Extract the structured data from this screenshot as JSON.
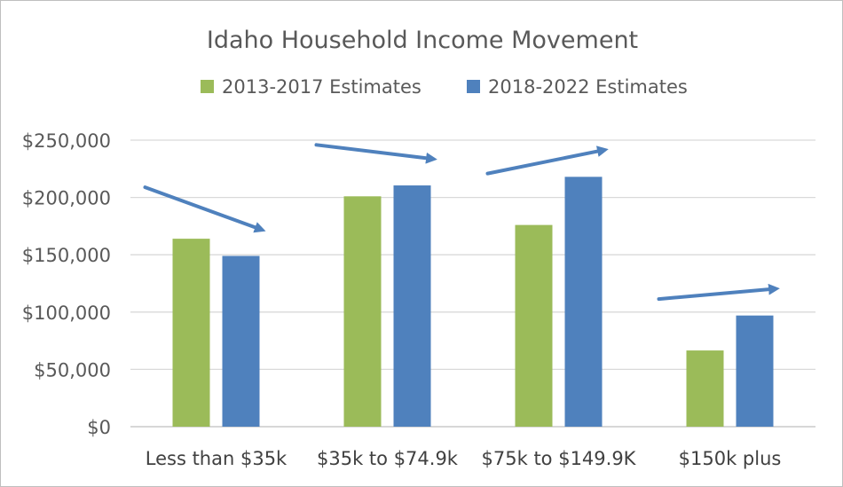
{
  "chart_data": {
    "type": "bar",
    "title": "Idaho Household Income Movement",
    "categories": [
      "Less than $35k",
      "$35k to $74.9k",
      "$75k to $149.9K",
      "$150k plus"
    ],
    "series": [
      {
        "name": "2013-2017 Estimates",
        "color": "#9bbb59",
        "values": [
          164000,
          201000,
          176000,
          66500
        ]
      },
      {
        "name": "2018-2022 Estimates",
        "color": "#4f81bd",
        "values": [
          149000,
          210500,
          218000,
          97000
        ]
      }
    ],
    "yticks": [
      "$0",
      "$50,000",
      "$100,000",
      "$150,000",
      "$200,000",
      "$250,000"
    ],
    "ylim": [
      0,
      250000
    ],
    "grid": true,
    "legend": "top-center",
    "trend_arrows": true,
    "arrow_color": "#4f81bd"
  }
}
